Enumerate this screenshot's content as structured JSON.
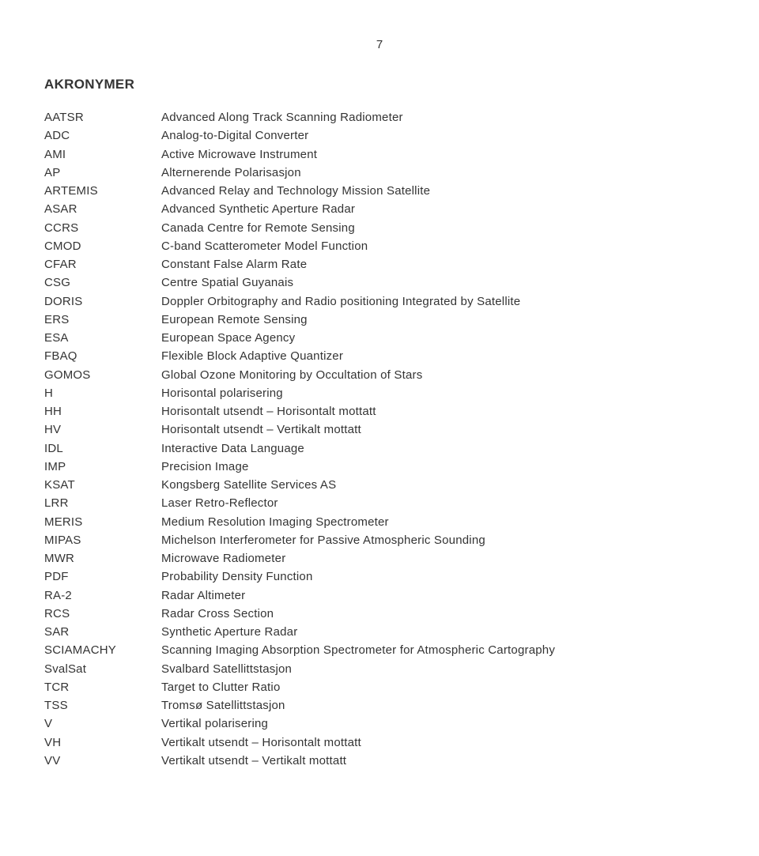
{
  "page_number": "7",
  "heading": "AKRONYMER",
  "text_color": "#343434",
  "background_color": "#ffffff",
  "font_size_body": 15,
  "font_size_heading": 17,
  "acronyms": [
    {
      "key": "AATSR",
      "val": "Advanced Along Track Scanning Radiometer"
    },
    {
      "key": "ADC",
      "val": "Analog-to-Digital Converter"
    },
    {
      "key": "AMI",
      "val": "Active Microwave Instrument"
    },
    {
      "key": "AP",
      "val": "Alternerende Polarisasjon"
    },
    {
      "key": "ARTEMIS",
      "val": "Advanced Relay and Technology Mission Satellite"
    },
    {
      "key": "ASAR",
      "val": "Advanced Synthetic Aperture Radar"
    },
    {
      "key": "CCRS",
      "val": "Canada Centre for Remote Sensing"
    },
    {
      "key": "CMOD",
      "val": "C-band Scatterometer Model Function"
    },
    {
      "key": "CFAR",
      "val": "Constant False Alarm Rate"
    },
    {
      "key": "CSG",
      "val": "Centre Spatial Guyanais"
    },
    {
      "key": "DORIS",
      "val": "Doppler Orbitography and Radio positioning Integrated by Satellite"
    },
    {
      "key": "ERS",
      "val": "European Remote Sensing"
    },
    {
      "key": "ESA",
      "val": "European Space Agency"
    },
    {
      "key": "FBAQ",
      "val": "Flexible Block Adaptive Quantizer"
    },
    {
      "key": "GOMOS",
      "val": "Global Ozone Monitoring by Occultation of Stars"
    },
    {
      "key": "H",
      "val": "Horisontal polarisering"
    },
    {
      "key": "HH",
      "val": "Horisontalt utsendt – Horisontalt mottatt"
    },
    {
      "key": "HV",
      "val": "Horisontalt utsendt – Vertikalt mottatt"
    },
    {
      "key": "IDL",
      "val": "Interactive Data Language"
    },
    {
      "key": "IMP",
      "val": "Precision Image"
    },
    {
      "key": "KSAT",
      "val": "Kongsberg Satellite Services AS"
    },
    {
      "key": "LRR",
      "val": "Laser Retro-Reflector"
    },
    {
      "key": "MERIS",
      "val": "Medium Resolution Imaging Spectrometer"
    },
    {
      "key": "MIPAS",
      "val": "Michelson Interferometer for Passive Atmospheric Sounding"
    },
    {
      "key": "MWR",
      "val": "Microwave Radiometer"
    },
    {
      "key": "PDF",
      "val": "Probability Density Function"
    },
    {
      "key": "RA-2",
      "val": "Radar Altimeter"
    },
    {
      "key": "RCS",
      "val": "Radar Cross Section"
    },
    {
      "key": "SAR",
      "val": "Synthetic Aperture Radar"
    },
    {
      "key": "SCIAMACHY",
      "val": "Scanning Imaging Absorption Spectrometer for Atmospheric Cartography"
    },
    {
      "key": "SvalSat",
      "val": "Svalbard Satellittstasjon"
    },
    {
      "key": "TCR",
      "val": "Target to Clutter Ratio"
    },
    {
      "key": "TSS",
      "val": "Tromsø Satellittstasjon"
    },
    {
      "key": "V",
      "val": "Vertikal polarisering"
    },
    {
      "key": "VH",
      "val": "Vertikalt utsendt – Horisontalt mottatt"
    },
    {
      "key": "VV",
      "val": "Vertikalt utsendt – Vertikalt mottatt"
    }
  ]
}
